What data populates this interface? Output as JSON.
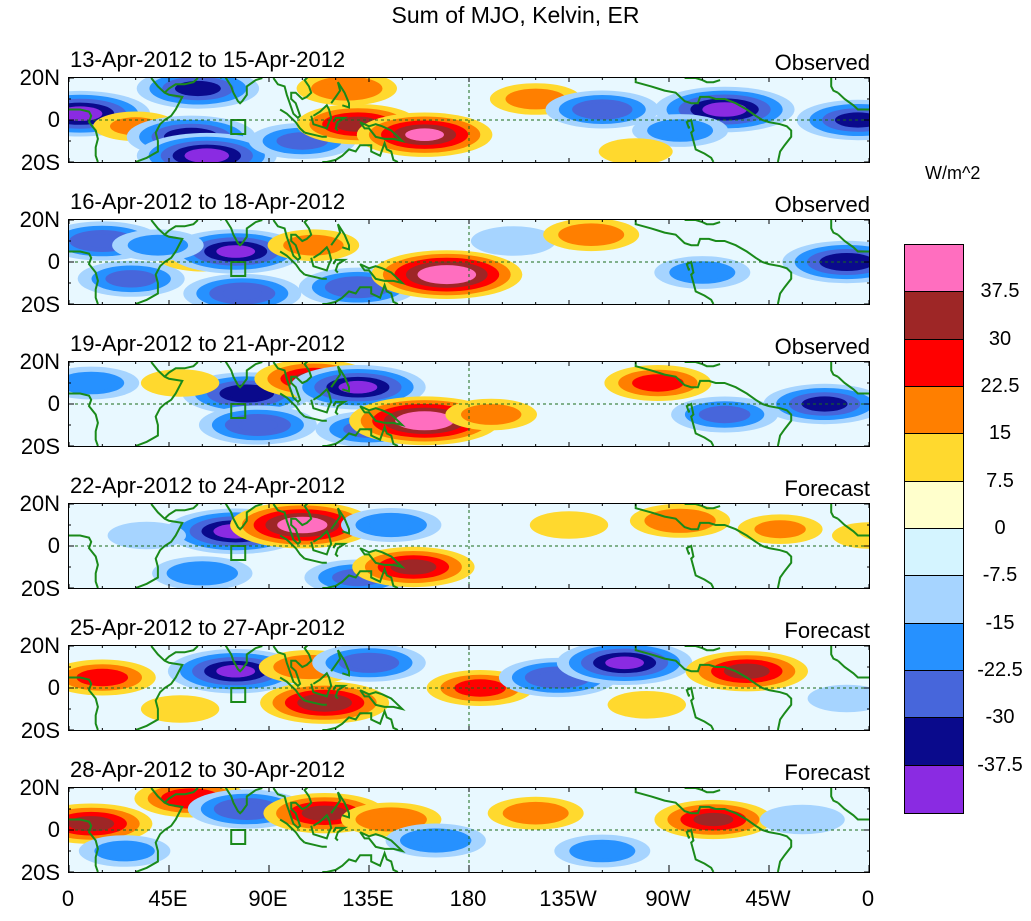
{
  "chart_data": {
    "type": "heatmap",
    "title": "Sum of MJO, Kelvin, ER",
    "units": "W/m^2",
    "x_tick_labels": [
      "0",
      "45E",
      "90E",
      "135E",
      "180",
      "135W",
      "90W",
      "45W",
      "0"
    ],
    "y_tick_labels": [
      "20N",
      "0",
      "20S"
    ],
    "colorbar_levels": [
      "37.5",
      "30",
      "22.5",
      "15",
      "7.5",
      "0",
      "-7.5",
      "-15",
      "-22.5",
      "-30",
      "-37.5"
    ],
    "colorbar_colors": [
      "#ff6ebf",
      "#9e2626",
      "#ff0000",
      "#ff7f00",
      "#ffd92e",
      "#ffffcc",
      "#d4f4ff",
      "#a6d4ff",
      "#2691ff",
      "#4766db",
      "#0a0a8c",
      "#8a2be2"
    ],
    "panels": [
      {
        "date_range": "13-Apr-2012 to 15-Apr-2012",
        "type": "Observed"
      },
      {
        "date_range": "16-Apr-2012 to 18-Apr-2012",
        "type": "Observed"
      },
      {
        "date_range": "19-Apr-2012 to 21-Apr-2012",
        "type": "Observed"
      },
      {
        "date_range": "22-Apr-2012 to 24-Apr-2012",
        "type": "Forecast"
      },
      {
        "date_range": "25-Apr-2012 to 27-Apr-2012",
        "type": "Forecast"
      },
      {
        "date_range": "28-Apr-2012 to 30-Apr-2012",
        "type": "Forecast"
      }
    ],
    "anomalies": [
      [
        {
          "lon": 5,
          "lat": 3,
          "value": -40
        },
        {
          "lon": 30,
          "lat": -3,
          "value": 15
        },
        {
          "lon": 58,
          "lat": 15,
          "value": -32
        },
        {
          "lon": 55,
          "lat": -8,
          "value": -35
        },
        {
          "lon": 62,
          "lat": -17,
          "value": -40
        },
        {
          "lon": 105,
          "lat": -10,
          "value": -25
        },
        {
          "lon": 130,
          "lat": -2,
          "value": 32
        },
        {
          "lon": 125,
          "lat": 15,
          "value": 22
        },
        {
          "lon": 160,
          "lat": -7,
          "value": 38
        },
        {
          "lon": 210,
          "lat": 10,
          "value": 18
        },
        {
          "lon": 240,
          "lat": 5,
          "value": -28
        },
        {
          "lon": 295,
          "lat": 5,
          "value": -40
        },
        {
          "lon": 275,
          "lat": -5,
          "value": -20
        },
        {
          "lon": 355,
          "lat": 0,
          "value": -32
        },
        {
          "lon": 255,
          "lat": -15,
          "value": 10
        }
      ],
      [
        {
          "lon": 15,
          "lat": 10,
          "value": -30
        },
        {
          "lon": 28,
          "lat": -8,
          "value": -25
        },
        {
          "lon": 60,
          "lat": 3,
          "value": 18
        },
        {
          "lon": 75,
          "lat": 5,
          "value": -38
        },
        {
          "lon": 78,
          "lat": -15,
          "value": -30
        },
        {
          "lon": 110,
          "lat": 8,
          "value": 18
        },
        {
          "lon": 130,
          "lat": -12,
          "value": -30
        },
        {
          "lon": 170,
          "lat": -6,
          "value": 45
        },
        {
          "lon": 200,
          "lat": 10,
          "value": -15
        },
        {
          "lon": 235,
          "lat": 13,
          "value": 20
        },
        {
          "lon": 285,
          "lat": -5,
          "value": -20
        },
        {
          "lon": 350,
          "lat": 0,
          "value": -35
        },
        {
          "lon": 40,
          "lat": 8,
          "value": -18
        }
      ],
      [
        {
          "lon": 10,
          "lat": 10,
          "value": -20
        },
        {
          "lon": 80,
          "lat": 5,
          "value": -35
        },
        {
          "lon": 85,
          "lat": -10,
          "value": -30
        },
        {
          "lon": 110,
          "lat": 12,
          "value": 30
        },
        {
          "lon": 130,
          "lat": 8,
          "value": -38
        },
        {
          "lon": 135,
          "lat": -12,
          "value": -25
        },
        {
          "lon": 160,
          "lat": -8,
          "value": 45
        },
        {
          "lon": 190,
          "lat": -5,
          "value": 18
        },
        {
          "lon": 265,
          "lat": 10,
          "value": 25
        },
        {
          "lon": 295,
          "lat": -5,
          "value": -25
        },
        {
          "lon": 340,
          "lat": 0,
          "value": -32
        },
        {
          "lon": 50,
          "lat": 10,
          "value": 12
        }
      ],
      [
        {
          "lon": 75,
          "lat": 7,
          "value": -40
        },
        {
          "lon": 105,
          "lat": 10,
          "value": 42
        },
        {
          "lon": 130,
          "lat": -15,
          "value": -25
        },
        {
          "lon": 155,
          "lat": -10,
          "value": 32
        },
        {
          "lon": 145,
          "lat": 10,
          "value": -22
        },
        {
          "lon": 60,
          "lat": -13,
          "value": -22
        },
        {
          "lon": 35,
          "lat": 5,
          "value": -12
        },
        {
          "lon": 225,
          "lat": 10,
          "value": 12
        },
        {
          "lon": 275,
          "lat": 12,
          "value": 22
        },
        {
          "lon": 320,
          "lat": 8,
          "value": 15
        },
        {
          "lon": 360,
          "lat": 5,
          "value": 10
        }
      ],
      [
        {
          "lon": 15,
          "lat": 5,
          "value": 25
        },
        {
          "lon": 75,
          "lat": 8,
          "value": -38
        },
        {
          "lon": 108,
          "lat": 10,
          "value": 22
        },
        {
          "lon": 115,
          "lat": -7,
          "value": 35
        },
        {
          "lon": 135,
          "lat": 12,
          "value": -28
        },
        {
          "lon": 185,
          "lat": 0,
          "value": 25
        },
        {
          "lon": 220,
          "lat": 5,
          "value": -30
        },
        {
          "lon": 250,
          "lat": 12,
          "value": -38
        },
        {
          "lon": 305,
          "lat": 8,
          "value": 32
        },
        {
          "lon": 260,
          "lat": -8,
          "value": 12
        },
        {
          "lon": 350,
          "lat": -5,
          "value": -12
        },
        {
          "lon": 50,
          "lat": -10,
          "value": 12
        }
      ],
      [
        {
          "lon": 10,
          "lat": 3,
          "value": 32
        },
        {
          "lon": 55,
          "lat": 15,
          "value": 28
        },
        {
          "lon": 80,
          "lat": 10,
          "value": -30
        },
        {
          "lon": 115,
          "lat": 8,
          "value": 32
        },
        {
          "lon": 145,
          "lat": 5,
          "value": 22
        },
        {
          "lon": 165,
          "lat": -5,
          "value": -22
        },
        {
          "lon": 210,
          "lat": 8,
          "value": 20
        },
        {
          "lon": 240,
          "lat": -10,
          "value": -20
        },
        {
          "lon": 290,
          "lat": 5,
          "value": 30
        },
        {
          "lon": 330,
          "lat": 5,
          "value": -15
        },
        {
          "lon": 25,
          "lat": -10,
          "value": -18
        }
      ]
    ]
  }
}
